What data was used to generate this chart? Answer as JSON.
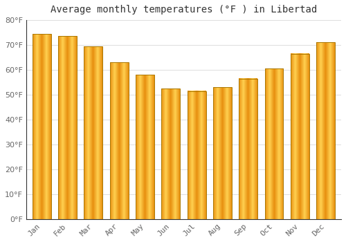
{
  "title": "Average monthly temperatures (°F ) in Libertad",
  "months": [
    "Jan",
    "Feb",
    "Mar",
    "Apr",
    "May",
    "Jun",
    "Jul",
    "Aug",
    "Sep",
    "Oct",
    "Nov",
    "Dec"
  ],
  "values": [
    74.5,
    73.5,
    69.5,
    63.0,
    58.0,
    52.5,
    51.5,
    53.0,
    56.5,
    60.5,
    66.5,
    71.0
  ],
  "bar_color": "#FFAA00",
  "bar_edge_color": "#CC8800",
  "ylim": [
    0,
    80
  ],
  "ytick_step": 10,
  "background_color": "#FFFFFF",
  "plot_bg_color": "#FFFFFF",
  "grid_color": "#DDDDDD",
  "title_fontsize": 10,
  "tick_fontsize": 8,
  "tick_color": "#666666"
}
